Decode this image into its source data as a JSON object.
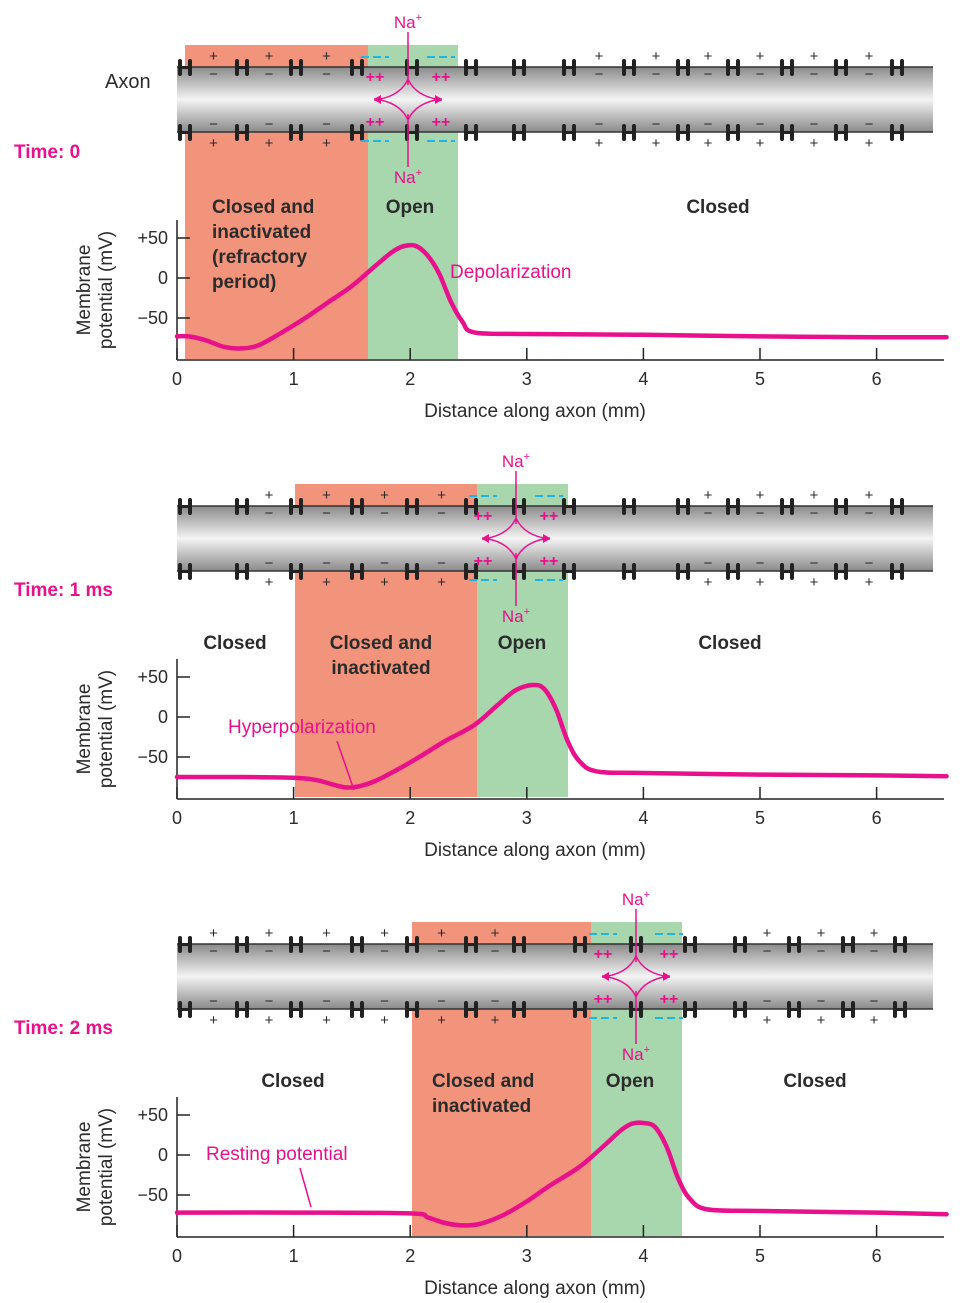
{
  "colors": {
    "refractory_fill": "#f2937b",
    "open_fill": "#a8d7ae",
    "trace": "#e8118b",
    "label_magenta": "#e8118b",
    "dash_cyan": "#1fb6e6",
    "channel": "#222222",
    "membrane_dark": "#8a8a8a",
    "membrane_light": "#f2f2f2"
  },
  "axon_label": "Axon",
  "ion_label": "Na",
  "ion_charge": "+",
  "xlabel": "Distance along axon (mm)",
  "ylabel_line1": "Membrane",
  "ylabel_line2": "potential (mV)",
  "x_ticks": [
    "0",
    "1",
    "2",
    "3",
    "4",
    "5",
    "6"
  ],
  "y_ticks": [
    "+50",
    "0",
    "−50"
  ],
  "panels": [
    {
      "time_label": "Time: 0",
      "states": [
        {
          "lines": [
            "Closed and",
            "inactivated",
            "(refractory",
            "period)"
          ],
          "align": "start"
        },
        {
          "lines": [
            "Open"
          ],
          "align": "middle"
        },
        {
          "lines": [
            "Closed"
          ],
          "align": "middle"
        }
      ],
      "annotation": "Depolarization"
    },
    {
      "time_label": "Time: 1 ms",
      "states": [
        {
          "lines": [
            "Closed"
          ],
          "align": "middle"
        },
        {
          "lines": [
            "Closed and",
            "inactivated"
          ],
          "align": "middle"
        },
        {
          "lines": [
            "Open"
          ],
          "align": "middle"
        },
        {
          "lines": [
            "Closed"
          ],
          "align": "middle"
        }
      ],
      "annotation": "Hyperpolarization"
    },
    {
      "time_label": "Time: 2 ms",
      "states": [
        {
          "lines": [
            "Closed"
          ],
          "align": "middle"
        },
        {
          "lines": [
            "Closed and",
            "inactivated"
          ],
          "align": "start"
        },
        {
          "lines": [
            "Open"
          ],
          "align": "middle"
        },
        {
          "lines": [
            "Closed"
          ],
          "align": "middle"
        }
      ],
      "annotation": "Resting potential"
    }
  ],
  "chart_data": [
    {
      "type": "line",
      "xlim": [
        0,
        6.6
      ],
      "ylim": [
        -90,
        70
      ],
      "regions": [
        {
          "state": "Closed and inactivated (refractory period)",
          "x0": 0.08,
          "x1": 1.63
        },
        {
          "state": "Open",
          "x0": 1.63,
          "x1": 2.42
        }
      ],
      "x": [
        0,
        0.1,
        0.25,
        0.4,
        0.55,
        0.7,
        0.9,
        1.1,
        1.3,
        1.5,
        1.7,
        1.85,
        1.95,
        2.05,
        2.15,
        2.25,
        2.35,
        2.45,
        2.55,
        3,
        4,
        5,
        6,
        6.6
      ],
      "y": [
        -73,
        -73,
        -78,
        -86,
        -88,
        -84,
        -68,
        -50,
        -30,
        -10,
        15,
        33,
        40,
        40,
        28,
        5,
        -30,
        -55,
        -68,
        -70,
        -71,
        -73,
        -74,
        -74
      ]
    },
    {
      "type": "line",
      "xlim": [
        0,
        6.6
      ],
      "ylim": [
        -90,
        70
      ],
      "regions": [
        {
          "state": "Closed and inactivated",
          "x0": 1.02,
          "x1": 2.57
        },
        {
          "state": "Open",
          "x0": 2.57,
          "x1": 3.35
        }
      ],
      "x": [
        0,
        0.5,
        1.0,
        1.2,
        1.35,
        1.45,
        1.55,
        1.7,
        1.9,
        2.1,
        2.3,
        2.55,
        2.75,
        2.9,
        3.05,
        3.15,
        3.25,
        3.35,
        3.45,
        3.6,
        4,
        5,
        6,
        6.6
      ],
      "y": [
        -75,
        -75,
        -76,
        -79,
        -85,
        -88,
        -87,
        -80,
        -65,
        -48,
        -30,
        -10,
        15,
        33,
        40,
        35,
        10,
        -30,
        -55,
        -68,
        -70,
        -72,
        -73,
        -74
      ]
    },
    {
      "type": "line",
      "xlim": [
        0,
        6.6
      ],
      "ylim": [
        -90,
        70
      ],
      "regions": [
        {
          "state": "Closed and inactivated",
          "x0": 2.0,
          "x1": 3.53
        },
        {
          "state": "Open",
          "x0": 3.53,
          "x1": 4.32
        }
      ],
      "x": [
        0,
        1,
        2.0,
        2.15,
        2.3,
        2.45,
        2.6,
        2.8,
        3.0,
        3.2,
        3.45,
        3.65,
        3.8,
        3.9,
        4.0,
        4.1,
        4.2,
        4.3,
        4.4,
        4.55,
        5,
        6,
        6.6
      ],
      "y": [
        -72,
        -72,
        -73,
        -78,
        -85,
        -88,
        -86,
        -75,
        -58,
        -38,
        -15,
        10,
        30,
        39,
        40,
        35,
        10,
        -30,
        -55,
        -68,
        -70,
        -72,
        -74
      ]
    }
  ]
}
